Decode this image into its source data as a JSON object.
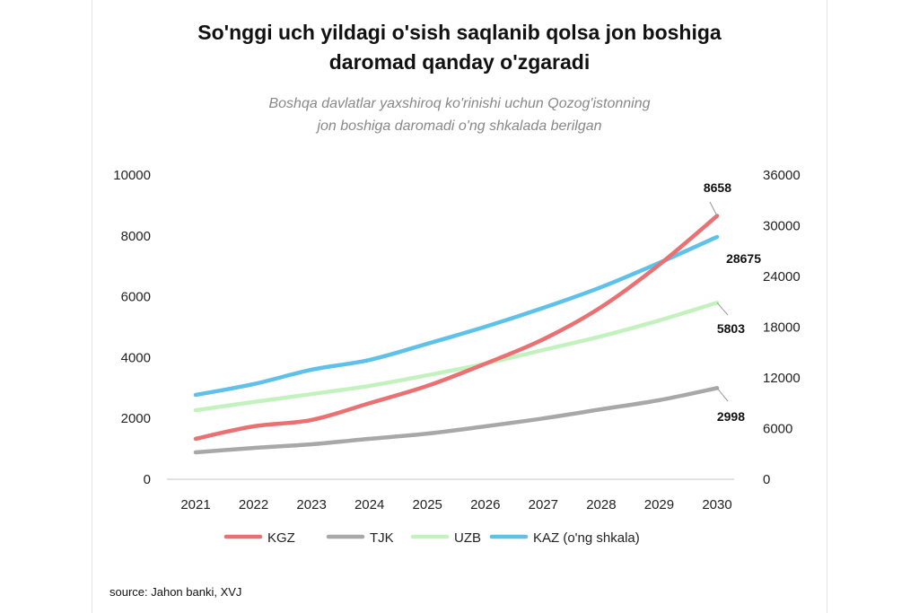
{
  "chart_data": {
    "type": "line",
    "title": "So'nggi uch yildagi o'sish saqlanib qolsa jon boshiga daromad qanday o'zgaradi",
    "title_lines": [
      "So'nggi uch yildagi o'sish saqlanib qolsa jon boshiga",
      "daromad qanday o'zgaradi"
    ],
    "subtitle_lines": [
      "Boshqa davlatlar  yaxshiroq ko'rinishi uchun Qozog'istonning",
      "jon boshiga daromadi o'ng shkalada berilgan"
    ],
    "x": [
      "2021",
      "2022",
      "2023",
      "2024",
      "2025",
      "2026",
      "2027",
      "2028",
      "2029",
      "2030"
    ],
    "y_left": {
      "range": [
        0,
        10000
      ],
      "ticks": [
        "0",
        "2000",
        "4000",
        "6000",
        "8000",
        "10000"
      ]
    },
    "y_right": {
      "range": [
        0,
        36000
      ],
      "ticks": [
        "0",
        "6000",
        "12000",
        "18000",
        "24000",
        "30000",
        "36000"
      ]
    },
    "series": [
      {
        "name": "KGZ",
        "legend": "KGZ",
        "axis": "left",
        "color": "#ea7072",
        "values": [
          1330,
          1740,
          1950,
          2500,
          3070,
          3800,
          4600,
          5660,
          7050,
          8658
        ],
        "end_label": "8658"
      },
      {
        "name": "TJK",
        "legend": "TJK",
        "axis": "left",
        "color": "#a8a8a8",
        "values": [
          885,
          1030,
          1150,
          1330,
          1500,
          1740,
          2000,
          2300,
          2600,
          2998
        ],
        "end_label": "2998"
      },
      {
        "name": "UZB",
        "legend": "UZB",
        "axis": "left",
        "color": "#c4f2bf",
        "values": [
          2270,
          2540,
          2800,
          3070,
          3420,
          3800,
          4250,
          4700,
          5220,
          5803
        ],
        "end_label": "5803"
      },
      {
        "name": "KAZ",
        "legend": "KAZ (o'ng shkala)",
        "axis": "right",
        "color": "#5ec1ea",
        "values": [
          9980,
          11260,
          12960,
          14120,
          16040,
          18050,
          20280,
          22730,
          25600,
          28675
        ],
        "end_label": "28675"
      }
    ],
    "grid": false,
    "legend_position": "bottom"
  },
  "source": "source: Jahon banki, XVJ"
}
